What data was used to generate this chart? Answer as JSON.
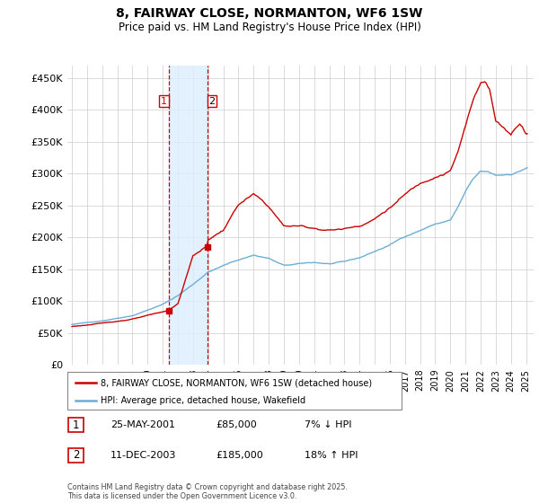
{
  "title": "8, FAIRWAY CLOSE, NORMANTON, WF6 1SW",
  "subtitle": "Price paid vs. HM Land Registry's House Price Index (HPI)",
  "yticks": [
    0,
    50000,
    100000,
    150000,
    200000,
    250000,
    300000,
    350000,
    400000,
    450000
  ],
  "ylim": [
    0,
    470000
  ],
  "xlim_start": 1994.7,
  "xlim_end": 2025.5,
  "hpi_color": "#6baed6",
  "price_color": "#cc0000",
  "shade_color": "#ddeeff",
  "vline_color": "#cc0000",
  "purchase1_x": 2001.38,
  "purchase1_y": 85000,
  "purchase2_x": 2003.94,
  "purchase2_y": 185000,
  "legend_label1": "8, FAIRWAY CLOSE, NORMANTON, WF6 1SW (detached house)",
  "legend_label2": "HPI: Average price, detached house, Wakefield",
  "table_data": [
    {
      "num": "1",
      "date": "25-MAY-2001",
      "price": "£85,000",
      "hpi": "7% ↓ HPI"
    },
    {
      "num": "2",
      "date": "11-DEC-2003",
      "price": "£185,000",
      "hpi": "18% ↑ HPI"
    }
  ],
  "footer": "Contains HM Land Registry data © Crown copyright and database right 2025.\nThis data is licensed under the Open Government Licence v3.0."
}
